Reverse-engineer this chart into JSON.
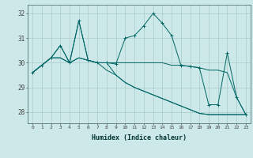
{
  "xlabel": "Humidex (Indice chaleur)",
  "bg_color": "#cce8e8",
  "line_color": "#006666",
  "grid_color": "#aacccc",
  "x": [
    0,
    1,
    2,
    3,
    4,
    5,
    6,
    7,
    8,
    9,
    10,
    11,
    12,
    13,
    14,
    15,
    16,
    17,
    18,
    19,
    20,
    21,
    22,
    23
  ],
  "y_main": [
    29.6,
    29.9,
    30.2,
    30.7,
    30.0,
    31.7,
    30.1,
    30.0,
    30.0,
    29.95,
    31.0,
    31.1,
    31.5,
    32.0,
    31.6,
    31.1,
    29.9,
    29.85,
    29.8,
    28.3,
    28.3,
    30.4,
    28.6,
    27.9
  ],
  "y_line2": [
    29.6,
    29.9,
    30.2,
    30.2,
    30.0,
    30.2,
    30.1,
    30.0,
    30.0,
    30.0,
    30.0,
    30.0,
    30.0,
    30.0,
    30.0,
    29.9,
    29.9,
    29.85,
    29.8,
    29.7,
    29.7,
    29.6,
    28.6,
    27.9
  ],
  "y_line3": [
    29.6,
    29.9,
    30.2,
    30.7,
    30.0,
    31.7,
    30.1,
    30.0,
    30.0,
    29.5,
    29.2,
    29.0,
    28.85,
    28.7,
    28.55,
    28.4,
    28.25,
    28.1,
    27.95,
    27.9,
    27.9,
    27.9,
    27.9,
    27.9
  ],
  "y_line4": [
    29.6,
    29.9,
    30.2,
    30.2,
    30.0,
    30.2,
    30.1,
    30.0,
    29.7,
    29.5,
    29.2,
    29.0,
    28.85,
    28.7,
    28.55,
    28.4,
    28.25,
    28.1,
    27.95,
    27.9,
    27.9,
    27.9,
    27.9,
    27.9
  ],
  "ylim": [
    27.55,
    32.35
  ],
  "yticks": [
    28,
    29,
    30,
    31,
    32
  ],
  "xticks": [
    0,
    1,
    2,
    3,
    4,
    5,
    6,
    7,
    8,
    9,
    10,
    11,
    12,
    13,
    14,
    15,
    16,
    17,
    18,
    19,
    20,
    21,
    22,
    23
  ]
}
